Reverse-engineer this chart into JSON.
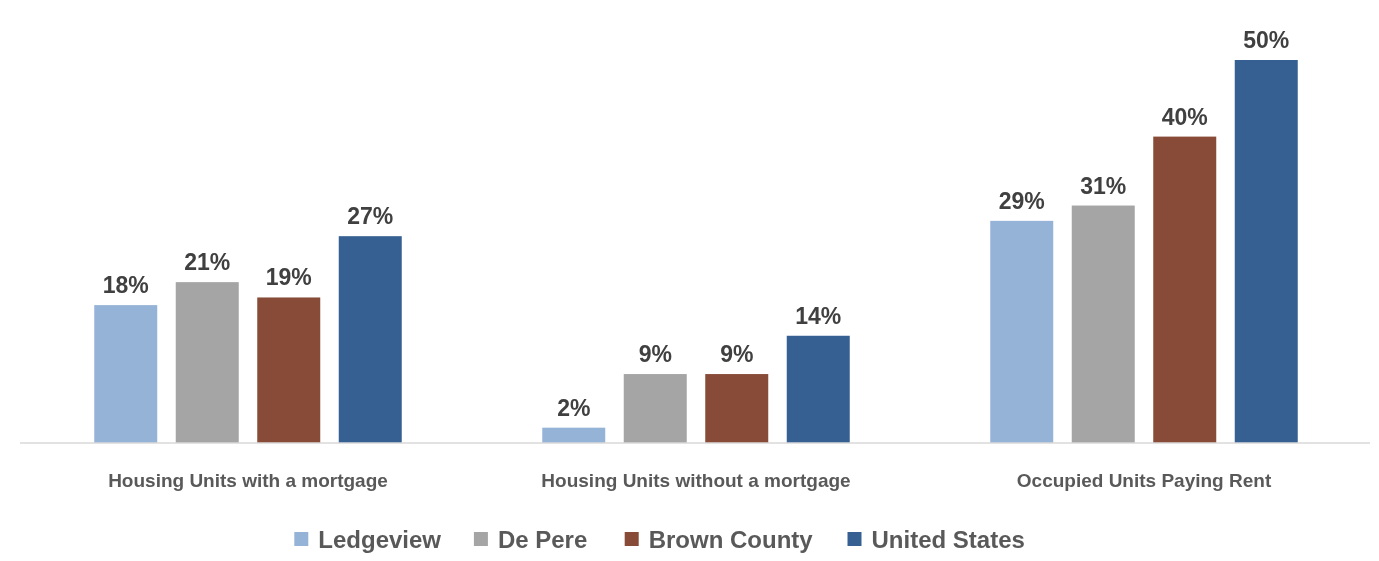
{
  "chart_data": {
    "type": "bar",
    "categories": [
      "Housing Units with a mortgage",
      "Housing Units without a mortgage",
      "Occupied Units Paying Rent"
    ],
    "series": [
      {
        "name": "Ledgeview",
        "color": "#95b3d7",
        "values": [
          18,
          2,
          29
        ],
        "value_labels": [
          "18%",
          "2%",
          "29%"
        ]
      },
      {
        "name": "De Pere",
        "color": "#a5a5a5",
        "values": [
          21,
          9,
          31
        ],
        "value_labels": [
          "21%",
          "9%",
          "31%"
        ]
      },
      {
        "name": "Brown County",
        "color": "#874b37",
        "values": [
          19,
          9,
          40
        ],
        "value_labels": [
          "19%",
          "9%",
          "40%"
        ]
      },
      {
        "name": "United States",
        "color": "#366092",
        "values": [
          27,
          14,
          50
        ],
        "value_labels": [
          "27%",
          "14%",
          "50%"
        ]
      }
    ],
    "legend": "bottom"
  }
}
